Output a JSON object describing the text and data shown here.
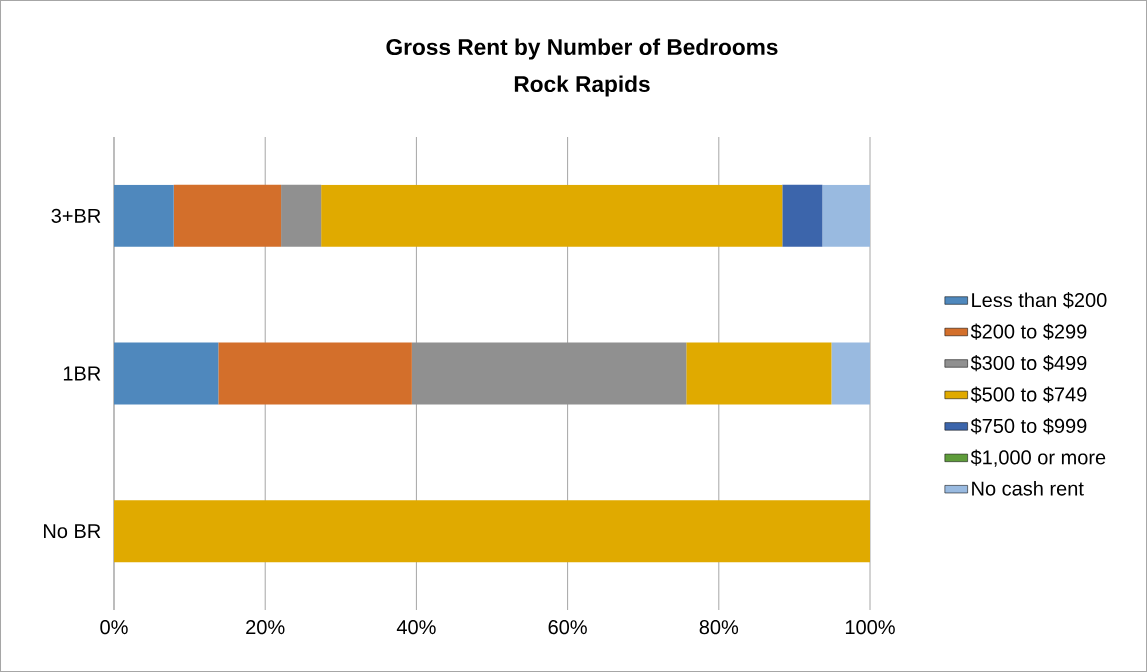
{
  "chart_data": {
    "type": "bar",
    "orientation": "horizontal",
    "stacked": true,
    "title": "Gross Rent by Number of Bedrooms",
    "subtitle": "Rock Rapids",
    "categories": [
      "3+BR",
      "1BR",
      "No BR"
    ],
    "series": [
      {
        "name": "Less than $200",
        "color": "#4f88bd",
        "values": [
          7.9,
          13.8,
          0
        ]
      },
      {
        "name": "$200 to $299",
        "color": "#d36f2b",
        "values": [
          14.2,
          25.6,
          0
        ]
      },
      {
        "name": "$300 to $499",
        "color": "#909090",
        "values": [
          5.3,
          36.3,
          0
        ]
      },
      {
        "name": "$500 to $749",
        "color": "#e0aa00",
        "values": [
          61.0,
          19.2,
          100
        ]
      },
      {
        "name": "$750 to $999",
        "color": "#3c65ab",
        "values": [
          5.3,
          0,
          0
        ]
      },
      {
        "name": "$1,000 or more",
        "color": "#5e9c3a",
        "values": [
          0,
          0,
          0
        ]
      },
      {
        "name": "No cash rent",
        "color": "#99bae0",
        "values": [
          6.3,
          5.1,
          0
        ]
      }
    ],
    "xlim": [
      0,
      100
    ],
    "xticks": [
      {
        "value": 0,
        "label": "0%"
      },
      {
        "value": 20,
        "label": "20%"
      },
      {
        "value": 40,
        "label": "40%"
      },
      {
        "value": 60,
        "label": "60%"
      },
      {
        "value": 80,
        "label": "80%"
      },
      {
        "value": 100,
        "label": "100%"
      }
    ],
    "grid": "x",
    "legend": "right"
  }
}
